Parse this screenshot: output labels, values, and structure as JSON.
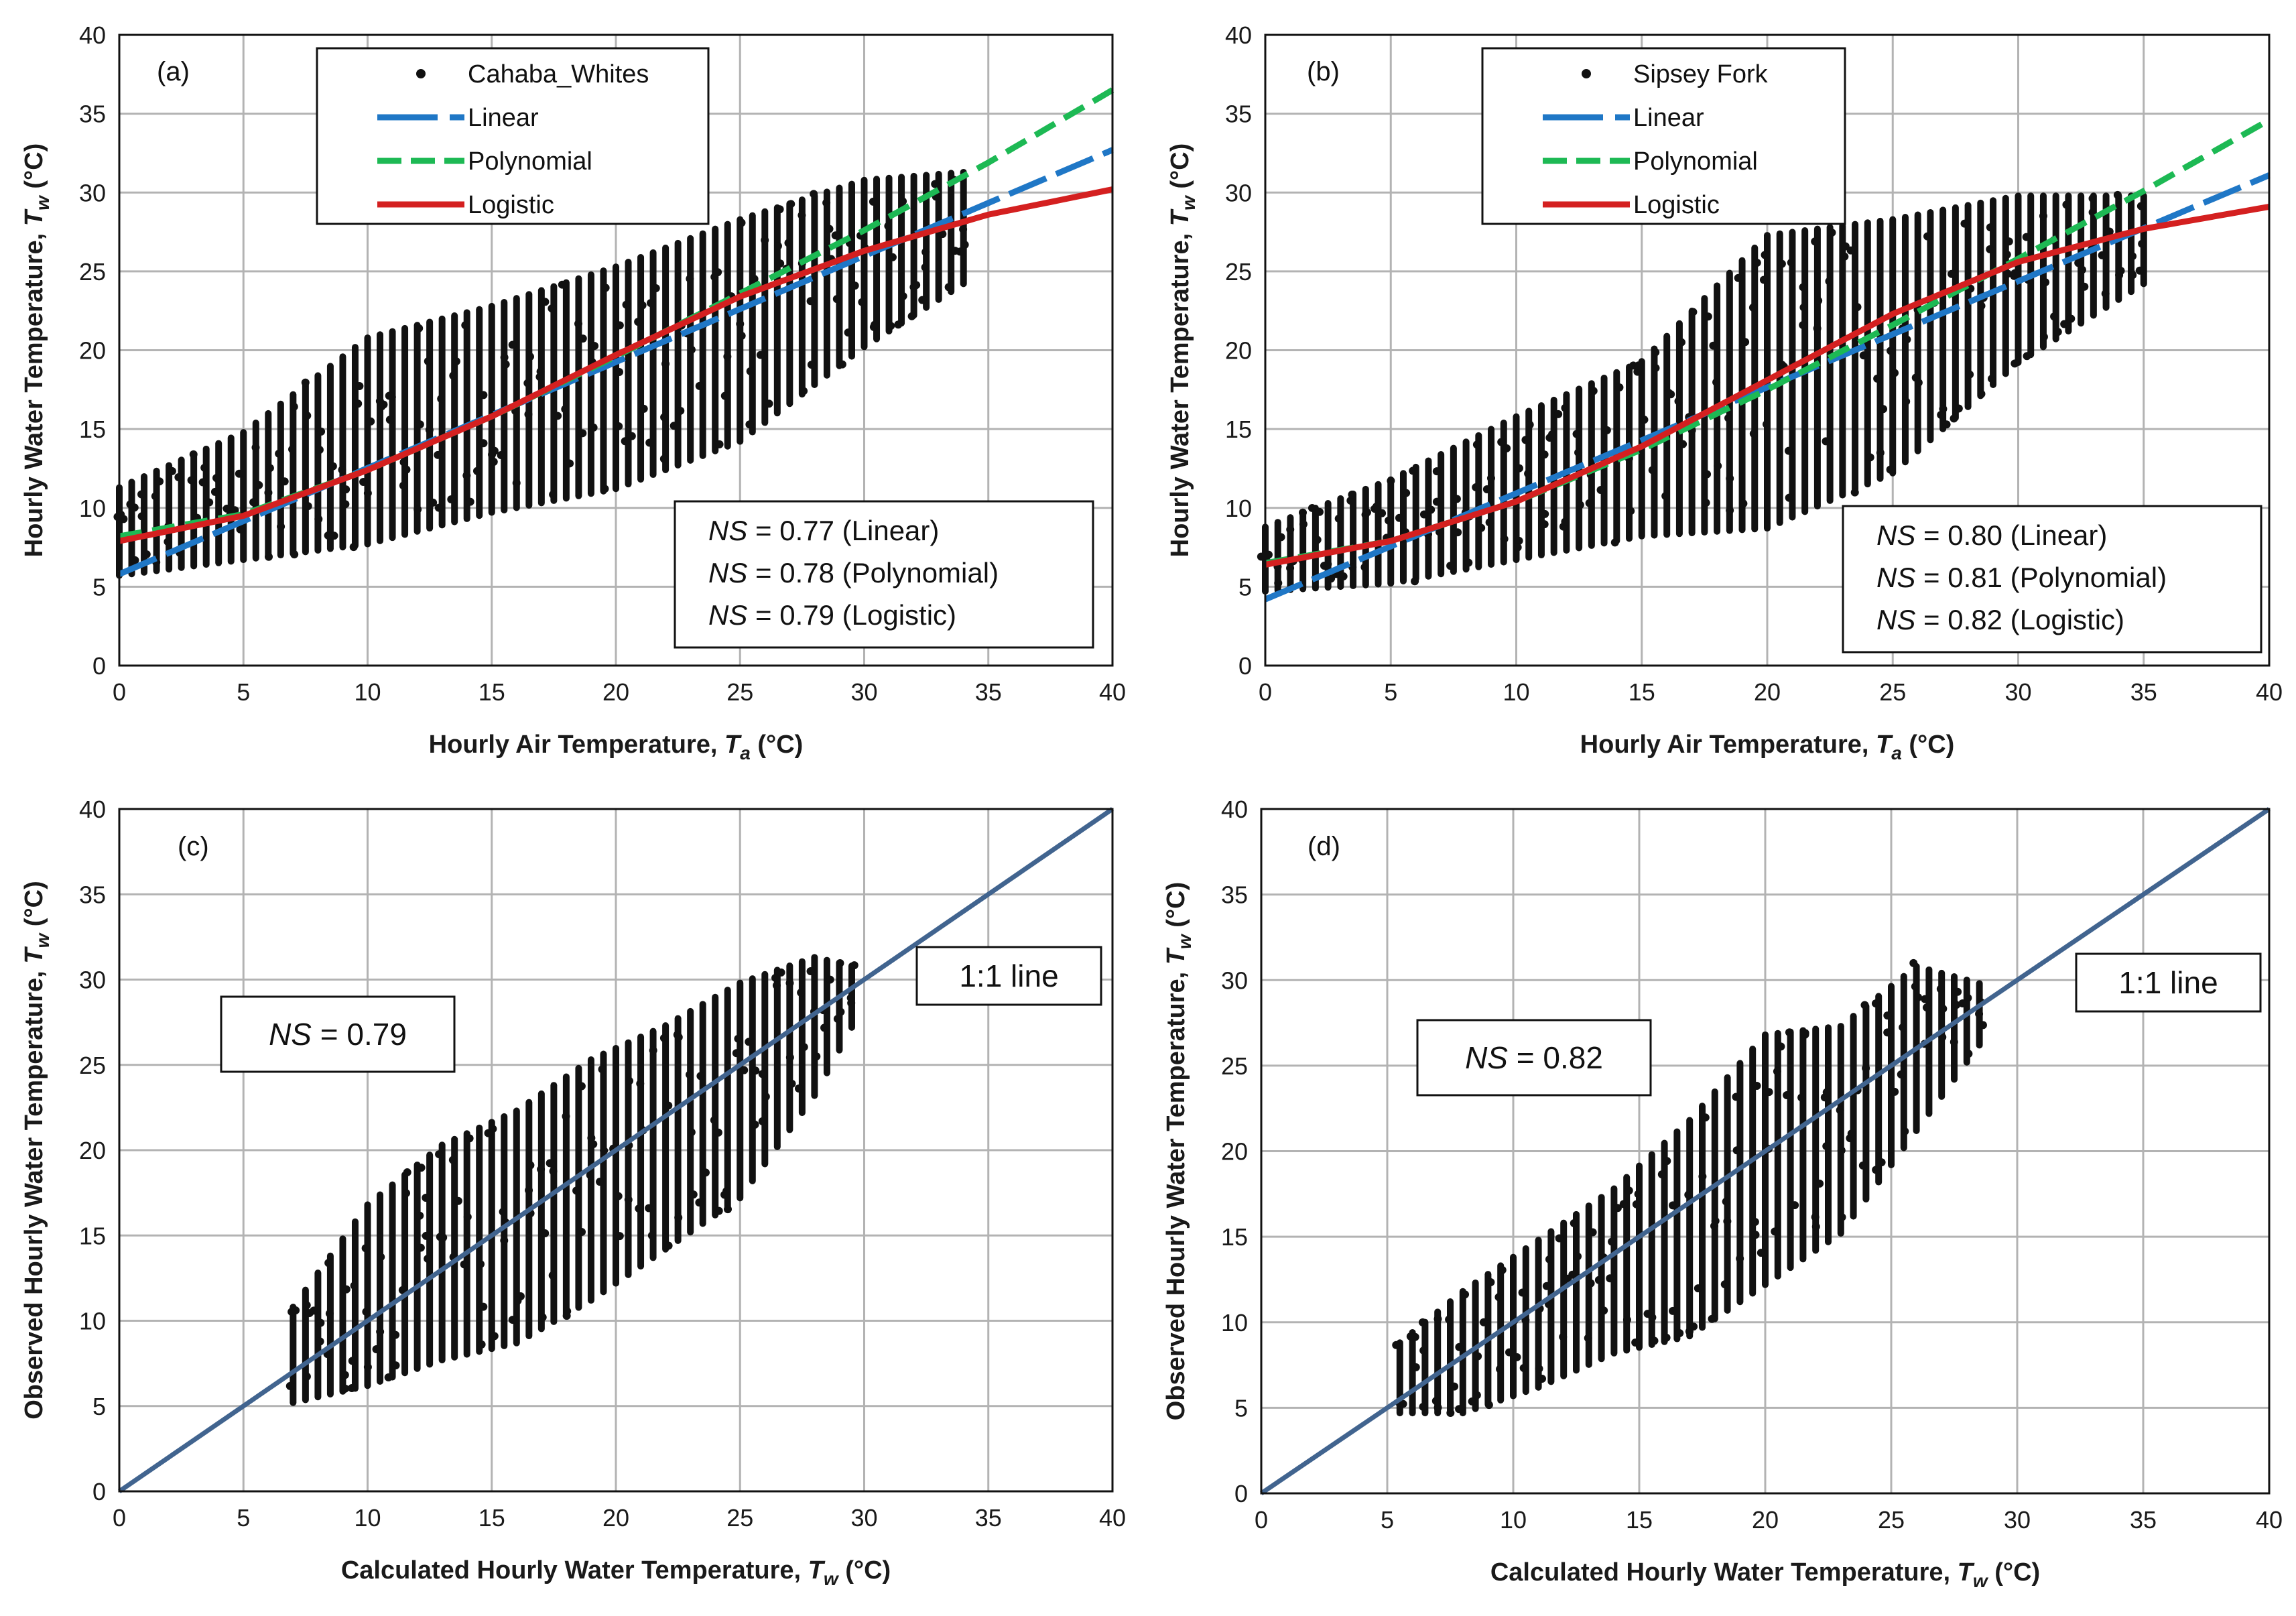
{
  "chart_data": [
    {
      "panel": "(a)",
      "type": "scatter",
      "xlabel": "Hourly Air Temperature, ",
      "xlabel_var": "T",
      "xlabel_sub": "a",
      "xlabel_unit": " (°C)",
      "ylabel": "Hourly Water Temperature, ",
      "ylabel_var": "T",
      "ylabel_sub": "w",
      "ylabel_unit": " (°C)",
      "xlim": [
        0,
        40
      ],
      "ylim": [
        0,
        40
      ],
      "xticks": [
        0,
        5,
        10,
        15,
        20,
        25,
        30,
        35,
        40
      ],
      "yticks": [
        0,
        5,
        10,
        15,
        20,
        25,
        30,
        35,
        40
      ],
      "grid": true,
      "legend_position": "top-center",
      "legend": [
        "Cahaba_Whites",
        "Linear",
        "Polynomial",
        "Logistic"
      ],
      "scatter_name": "Cahaba_Whites",
      "scatter_band": {
        "x": [
          0,
          5,
          10,
          15,
          20,
          25,
          30,
          34
        ],
        "ymin": [
          5.5,
          6.5,
          7.5,
          9.5,
          11,
          14,
          20,
          24
        ],
        "ymax": [
          11.5,
          15,
          21,
          23,
          25.5,
          28.5,
          31,
          31.5
        ]
      },
      "fits": [
        {
          "name": "Linear",
          "color": "#1f77c6",
          "style": "long-dash",
          "x": [
            0,
            40
          ],
          "y": [
            5.8,
            32.7
          ]
        },
        {
          "name": "Polynomial",
          "color": "#1db954",
          "style": "dash",
          "x": [
            0,
            5,
            10,
            15,
            20,
            25,
            30,
            35,
            40
          ],
          "y": [
            8.2,
            9.6,
            12.4,
            15.8,
            19.6,
            23.6,
            27.6,
            31.9,
            36.5
          ]
        },
        {
          "name": "Logistic",
          "color": "#d42020",
          "style": "solid",
          "x": [
            0,
            5,
            10,
            15,
            20,
            25,
            30,
            35,
            40
          ],
          "y": [
            7.9,
            9.5,
            12.4,
            15.8,
            19.7,
            23.4,
            26.3,
            28.6,
            30.2
          ]
        }
      ],
      "ns_box": [
        {
          "label": "NS",
          "eq": " =  ",
          "value": "0.77",
          "method": " (Linear)"
        },
        {
          "label": "NS",
          "eq": " =  ",
          "value": "0.78",
          "method": " (Polynomial)"
        },
        {
          "label": "NS",
          "eq": " =  ",
          "value": "0.79",
          "method": " (Logistic)"
        }
      ]
    },
    {
      "panel": "(b)",
      "type": "scatter",
      "xlabel": "Hourly Air Temperature, ",
      "xlabel_var": "T",
      "xlabel_sub": "a",
      "xlabel_unit": " (°C)",
      "ylabel": "Hourly Water Temperature, ",
      "ylabel_var": "T",
      "ylabel_sub": "w",
      "ylabel_unit": " (°C)",
      "xlim": [
        0,
        40
      ],
      "ylim": [
        0,
        40
      ],
      "xticks": [
        0,
        5,
        10,
        15,
        20,
        25,
        30,
        35,
        40
      ],
      "yticks": [
        0,
        5,
        10,
        15,
        20,
        25,
        30,
        35,
        40
      ],
      "grid": true,
      "legend_position": "top-center",
      "legend": [
        "Sipsey Fork",
        "Linear",
        "Polynomial",
        "Logistic"
      ],
      "scatter_name": "Sipsey Fork",
      "scatter_band": {
        "x": [
          0,
          5,
          10,
          15,
          20,
          25,
          30,
          35
        ],
        "ymin": [
          4.5,
          5,
          6.5,
          8,
          8.5,
          12,
          19,
          24
        ],
        "ymax": [
          9,
          12,
          16,
          19.5,
          27.5,
          28.5,
          30,
          30
        ]
      },
      "fits": [
        {
          "name": "Linear",
          "color": "#1f77c6",
          "style": "long-dash",
          "x": [
            0,
            40
          ],
          "y": [
            4.2,
            31.1
          ]
        },
        {
          "name": "Polynomial",
          "color": "#1db954",
          "style": "dash",
          "x": [
            0,
            5,
            10,
            15,
            20,
            25,
            30,
            35,
            40
          ],
          "y": [
            6.5,
            7.9,
            10.4,
            13.7,
            17.5,
            21.6,
            25.8,
            30.1,
            34.6
          ]
        },
        {
          "name": "Logistic",
          "color": "#d42020",
          "style": "solid",
          "x": [
            0,
            5,
            10,
            15,
            20,
            25,
            30,
            35,
            40
          ],
          "y": [
            6.4,
            7.9,
            10.4,
            13.9,
            18.1,
            22.3,
            25.6,
            27.7,
            29.1
          ]
        }
      ],
      "ns_box": [
        {
          "label": "NS",
          "eq": " =  ",
          "value": "0.80",
          "method": " (Linear)"
        },
        {
          "label": "NS",
          "eq": " =  ",
          "value": "0.81",
          "method": " (Polynomial)"
        },
        {
          "label": "NS",
          "eq": " =  ",
          "value": "0.82",
          "method": " (Logistic)"
        }
      ]
    },
    {
      "panel": "(c)",
      "type": "scatter",
      "xlabel": "Calculated Hourly Water Temperature, ",
      "xlabel_var": "T",
      "xlabel_sub": "w",
      "xlabel_unit": " (°C)",
      "ylabel": "Observed Hourly Water Temperature, ",
      "ylabel_var": "T",
      "ylabel_sub": "w",
      "ylabel_unit": " (°C)",
      "xlim": [
        0,
        40
      ],
      "ylim": [
        0,
        40
      ],
      "xticks": [
        0,
        5,
        10,
        15,
        20,
        25,
        30,
        35,
        40
      ],
      "yticks": [
        0,
        5,
        10,
        15,
        20,
        25,
        30,
        35,
        40
      ],
      "grid": true,
      "one_to_one_label": "1:1 line",
      "one_to_one_color": "#41648f",
      "scatter_band": {
        "x": [
          7,
          10,
          13,
          16,
          19,
          22,
          25,
          28,
          29.5
        ],
        "ymin": [
          5,
          6,
          7.5,
          8.5,
          11,
          14,
          17,
          23,
          27
        ],
        "ymax": [
          11,
          17,
          20.5,
          22.5,
          25.5,
          27.5,
          30,
          31.5,
          31
        ]
      },
      "ns_single": {
        "label": "NS",
        "eq": " =  ",
        "value": "0.79"
      }
    },
    {
      "panel": "(d)",
      "type": "scatter",
      "xlabel": "Calculated Hourly Water Temperature, ",
      "xlabel_var": "T",
      "xlabel_sub": "w",
      "xlabel_unit": " (°C)",
      "ylabel": "Observed Hourly Water Temperature, ",
      "ylabel_var": "T",
      "ylabel_sub": "w",
      "ylabel_unit": " (°C)",
      "xlim": [
        0,
        40
      ],
      "ylim": [
        0,
        40
      ],
      "xticks": [
        0,
        5,
        10,
        15,
        20,
        25,
        30,
        35,
        40
      ],
      "yticks": [
        0,
        5,
        10,
        15,
        20,
        25,
        30,
        35,
        40
      ],
      "grid": true,
      "one_to_one_label": "1:1 line",
      "one_to_one_color": "#41648f",
      "scatter_band": {
        "x": [
          5.5,
          8,
          11,
          14,
          17,
          20,
          23,
          26,
          28.5
        ],
        "ymin": [
          4.5,
          4.5,
          6,
          8,
          9,
          12,
          15,
          21,
          26
        ],
        "ymax": [
          9,
          12,
          15,
          18,
          22,
          27,
          27.5,
          31,
          30
        ]
      },
      "ns_single": {
        "label": "NS",
        "eq": " =  ",
        "value": "0.82"
      }
    }
  ]
}
